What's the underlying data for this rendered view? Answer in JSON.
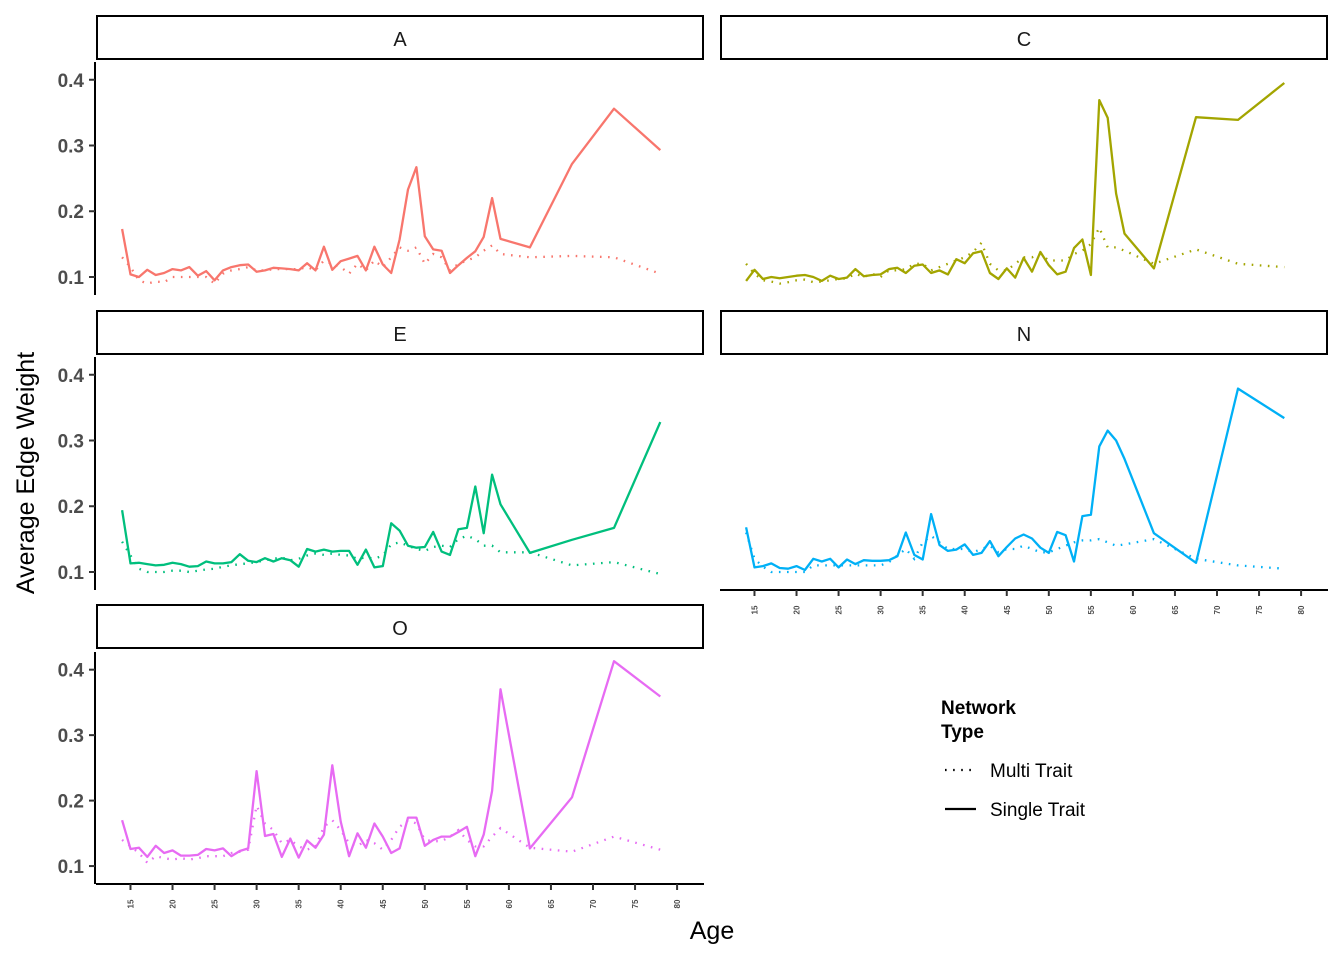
{
  "chart_data": {
    "type": "line",
    "xlabel": "Age",
    "ylabel": "Average Edge Weight",
    "xlim": [
      10.9,
      83.2
    ],
    "ylim": [
      0.0726,
      0.427
    ],
    "xticks": [
      15,
      20,
      25,
      30,
      35,
      40,
      45,
      50,
      55,
      60,
      65,
      70,
      75,
      80
    ],
    "yticks": [
      0.1,
      0.2,
      0.3,
      0.4
    ],
    "ytick_labels": [
      "0.1",
      "0.2",
      "0.3",
      "0.4"
    ],
    "grid": false,
    "legend": {
      "title": "Network\nType",
      "title_lines": [
        "Network",
        "Type"
      ],
      "placement": "bottom-right",
      "entries": [
        {
          "label": "Multi Trait",
          "linetype": "dotted"
        },
        {
          "label": "Single Trait",
          "linetype": "solid"
        }
      ]
    },
    "ages": [
      14,
      15,
      16,
      17,
      18,
      19,
      20,
      21,
      22,
      23,
      24,
      25,
      26,
      27,
      28,
      29,
      30,
      31,
      32,
      33,
      34,
      35,
      36,
      37,
      38,
      39,
      40,
      41,
      42,
      43,
      44,
      45,
      46,
      47,
      48,
      49,
      50,
      51,
      52,
      53,
      54,
      55,
      56,
      57,
      58,
      59,
      62.5,
      67.5,
      72.5,
      78
    ],
    "facets": [
      {
        "name": "A",
        "color": "#F8766D",
        "single": [
          0.173,
          0.104,
          0.1,
          0.111,
          0.103,
          0.106,
          0.112,
          0.11,
          0.115,
          0.102,
          0.109,
          0.095,
          0.11,
          0.115,
          0.118,
          0.119,
          0.108,
          0.11,
          0.114,
          0.113,
          0.112,
          0.11,
          0.121,
          0.11,
          0.146,
          0.111,
          0.124,
          0.128,
          0.132,
          0.11,
          0.146,
          0.119,
          0.106,
          0.157,
          0.233,
          0.267,
          0.162,
          0.142,
          0.14,
          0.106,
          0.118,
          0.129,
          0.139,
          0.161,
          0.22,
          0.158,
          0.145,
          0.272,
          0.356,
          0.293
        ],
        "multi": [
          0.13,
          0.115,
          0.095,
          0.09,
          0.093,
          0.092,
          0.1,
          0.1,
          0.1,
          0.1,
          0.1,
          0.09,
          0.105,
          0.11,
          0.112,
          0.115,
          0.11,
          0.11,
          0.112,
          0.112,
          0.112,
          0.112,
          0.115,
          0.11,
          0.125,
          0.12,
          0.115,
          0.105,
          0.12,
          0.11,
          0.125,
          0.115,
          0.13,
          0.145,
          0.14,
          0.145,
          0.12,
          0.135,
          0.13,
          0.11,
          0.12,
          0.125,
          0.13,
          0.14,
          0.148,
          0.135,
          0.13,
          0.132,
          0.13,
          0.105
        ]
      },
      {
        "name": "C",
        "color": "#A3A500",
        "single": [
          0.094,
          0.111,
          0.097,
          0.1,
          0.098,
          0.1,
          0.102,
          0.103,
          0.1,
          0.094,
          0.102,
          0.097,
          0.099,
          0.112,
          0.101,
          0.103,
          0.104,
          0.112,
          0.114,
          0.106,
          0.117,
          0.119,
          0.106,
          0.11,
          0.104,
          0.127,
          0.121,
          0.136,
          0.139,
          0.106,
          0.097,
          0.113,
          0.099,
          0.129,
          0.108,
          0.138,
          0.118,
          0.104,
          0.108,
          0.144,
          0.157,
          0.103,
          0.369,
          0.342,
          0.227,
          0.166,
          0.113,
          0.343,
          0.339,
          0.395
        ],
        "multi": [
          0.12,
          0.105,
          0.095,
          0.093,
          0.09,
          0.092,
          0.095,
          0.096,
          0.092,
          0.093,
          0.095,
          0.097,
          0.098,
          0.105,
          0.1,
          0.105,
          0.1,
          0.11,
          0.11,
          0.112,
          0.12,
          0.12,
          0.11,
          0.115,
          0.12,
          0.125,
          0.13,
          0.138,
          0.152,
          0.12,
          0.11,
          0.11,
          0.12,
          0.13,
          0.13,
          0.135,
          0.125,
          0.125,
          0.125,
          0.135,
          0.14,
          0.15,
          0.175,
          0.145,
          0.145,
          0.14,
          0.12,
          0.142,
          0.12,
          0.115
        ]
      },
      {
        "name": "E",
        "color": "#00BF7D",
        "single": [
          0.194,
          0.113,
          0.114,
          0.112,
          0.11,
          0.111,
          0.114,
          0.112,
          0.108,
          0.109,
          0.116,
          0.113,
          0.113,
          0.115,
          0.127,
          0.117,
          0.115,
          0.121,
          0.116,
          0.121,
          0.118,
          0.108,
          0.135,
          0.131,
          0.134,
          0.131,
          0.132,
          0.132,
          0.111,
          0.134,
          0.107,
          0.109,
          0.174,
          0.163,
          0.14,
          0.137,
          0.138,
          0.161,
          0.131,
          0.126,
          0.165,
          0.167,
          0.23,
          0.159,
          0.248,
          0.203,
          0.129,
          0.149,
          0.167,
          0.328
        ],
        "multi": [
          0.146,
          0.125,
          0.105,
          0.1,
          0.1,
          0.1,
          0.102,
          0.102,
          0.1,
          0.102,
          0.104,
          0.105,
          0.108,
          0.11,
          0.112,
          0.113,
          0.115,
          0.118,
          0.12,
          0.122,
          0.118,
          0.12,
          0.125,
          0.128,
          0.126,
          0.128,
          0.126,
          0.125,
          0.12,
          0.122,
          0.12,
          0.125,
          0.142,
          0.145,
          0.14,
          0.135,
          0.132,
          0.138,
          0.14,
          0.138,
          0.15,
          0.155,
          0.15,
          0.14,
          0.14,
          0.13,
          0.13,
          0.11,
          0.115,
          0.097
        ]
      },
      {
        "name": "N",
        "color": "#00B0F6",
        "single": [
          0.168,
          0.107,
          0.109,
          0.113,
          0.106,
          0.105,
          0.109,
          0.103,
          0.12,
          0.116,
          0.12,
          0.107,
          0.119,
          0.112,
          0.118,
          0.117,
          0.117,
          0.118,
          0.124,
          0.16,
          0.126,
          0.119,
          0.188,
          0.141,
          0.132,
          0.134,
          0.142,
          0.126,
          0.129,
          0.147,
          0.124,
          0.138,
          0.151,
          0.157,
          0.151,
          0.137,
          0.129,
          0.161,
          0.156,
          0.116,
          0.185,
          0.187,
          0.291,
          0.315,
          0.3,
          0.272,
          0.159,
          0.114,
          0.379,
          0.334
        ],
        "multi": [
          0.16,
          0.12,
          0.108,
          0.1,
          0.1,
          0.1,
          0.1,
          0.1,
          0.11,
          0.11,
          0.11,
          0.11,
          0.11,
          0.11,
          0.11,
          0.11,
          0.11,
          0.115,
          0.125,
          0.135,
          0.12,
          0.145,
          0.155,
          0.145,
          0.135,
          0.135,
          0.135,
          0.13,
          0.135,
          0.14,
          0.13,
          0.135,
          0.135,
          0.14,
          0.135,
          0.13,
          0.13,
          0.135,
          0.14,
          0.145,
          0.148,
          0.148,
          0.15,
          0.145,
          0.14,
          0.142,
          0.15,
          0.12,
          0.11,
          0.105
        ]
      },
      {
        "name": "O",
        "color": "#E76BF3",
        "single": [
          0.17,
          0.126,
          0.128,
          0.114,
          0.131,
          0.12,
          0.124,
          0.116,
          0.116,
          0.117,
          0.126,
          0.124,
          0.127,
          0.115,
          0.123,
          0.127,
          0.245,
          0.146,
          0.149,
          0.114,
          0.142,
          0.113,
          0.139,
          0.128,
          0.148,
          0.254,
          0.168,
          0.115,
          0.15,
          0.128,
          0.165,
          0.145,
          0.12,
          0.127,
          0.174,
          0.174,
          0.131,
          0.14,
          0.145,
          0.145,
          0.152,
          0.16,
          0.115,
          0.148,
          0.215,
          0.37,
          0.127,
          0.205,
          0.413,
          0.359
        ],
        "multi": [
          0.14,
          0.13,
          0.12,
          0.105,
          0.115,
          0.112,
          0.11,
          0.112,
          0.11,
          0.112,
          0.115,
          0.115,
          0.115,
          0.12,
          0.122,
          0.125,
          0.192,
          0.165,
          0.155,
          0.135,
          0.14,
          0.13,
          0.125,
          0.13,
          0.16,
          0.17,
          0.155,
          0.135,
          0.13,
          0.14,
          0.135,
          0.125,
          0.14,
          0.16,
          0.17,
          0.165,
          0.14,
          0.138,
          0.138,
          0.145,
          0.155,
          0.14,
          0.13,
          0.13,
          0.145,
          0.158,
          0.128,
          0.122,
          0.145,
          0.125
        ]
      }
    ]
  }
}
